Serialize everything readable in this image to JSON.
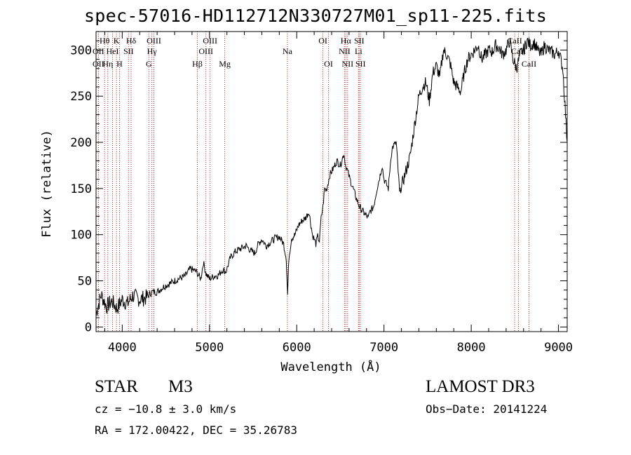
{
  "chart_data": {
    "type": "line",
    "title": "spec-57016-HD112712N330727M01_sp11-225.fits",
    "xlabel": "Wavelength (Å)",
    "ylabel": "Flux (relative)",
    "xlim": [
      3700,
      9100
    ],
    "ylim": [
      -5,
      320
    ],
    "xticks": [
      4000,
      5000,
      6000,
      7000,
      8000,
      9000
    ],
    "yticks": [
      0,
      50,
      100,
      150,
      200,
      250,
      300
    ],
    "series": [
      {
        "name": "flux",
        "x": [
          3700,
          3760,
          3820,
          3880,
          3940,
          4000,
          4060,
          4120,
          4200,
          4280,
          4340,
          4400,
          4480,
          4560,
          4640,
          4720,
          4780,
          4850,
          4900,
          4930,
          4960,
          5000,
          5050,
          5100,
          5150,
          5190,
          5240,
          5300,
          5360,
          5420,
          5480,
          5520,
          5560,
          5600,
          5650,
          5700,
          5750,
          5800,
          5850,
          5880,
          5895,
          5910,
          5940,
          5980,
          6020,
          6060,
          6100,
          6140,
          6180,
          6200,
          6220,
          6240,
          6260,
          6280,
          6300,
          6320,
          6340,
          6380,
          6420,
          6460,
          6500,
          6540,
          6560,
          6580,
          6610,
          6640,
          6680,
          6720,
          6760,
          6800,
          6820,
          6840,
          6880,
          6920,
          6950,
          6980,
          7000,
          7050,
          7080,
          7100,
          7140,
          7180,
          7240,
          7300,
          7360,
          7400,
          7440,
          7480,
          7520,
          7560,
          7600,
          7640,
          7680,
          7720,
          7760,
          7800,
          7840,
          7880,
          7920,
          7960,
          8000,
          8040,
          8080,
          8120,
          8160,
          8200,
          8240,
          8280,
          8320,
          8360,
          8400,
          8440,
          8480,
          8520,
          8560,
          8600,
          8640,
          8680,
          8720,
          8760,
          8800,
          8840,
          8880,
          8920,
          8960,
          9000,
          9050,
          9100
        ],
        "y": [
          15,
          35,
          22,
          28,
          20,
          30,
          25,
          34,
          30,
          32,
          38,
          38,
          44,
          48,
          52,
          55,
          63,
          60,
          52,
          70,
          58,
          52,
          55,
          56,
          62,
          60,
          75,
          82,
          85,
          88,
          82,
          80,
          90,
          95,
          88,
          92,
          96,
          98,
          90,
          75,
          35,
          75,
          96,
          100,
          110,
          115,
          118,
          125,
          100,
          95,
          90,
          98,
          93,
          118,
          130,
          150,
          148,
          165,
          172,
          180,
          175,
          188,
          175,
          170,
          160,
          152,
          140,
          130,
          125,
          120,
          118,
          125,
          130,
          150,
          162,
          175,
          160,
          150,
          185,
          195,
          200,
          145,
          165,
          185,
          225,
          250,
          260,
          265,
          245,
          275,
          283,
          270,
          300,
          295,
          285,
          265,
          260,
          255,
          275,
          290,
          295,
          300,
          305,
          290,
          295,
          300,
          298,
          305,
          302,
          295,
          300,
          310,
          290,
          280,
          295,
          300,
          310,
          305,
          308,
          300,
          295,
          305,
          300,
          298,
          295,
          300,
          280,
          200
        ]
      }
    ],
    "lines": [
      {
        "label": "Hθ",
        "x": 3798,
        "row": 1
      },
      {
        "label": "OII",
        "x": 3727,
        "row": 2
      },
      {
        "label": "OII",
        "x": 3727,
        "row": 3
      },
      {
        "label": "Hη",
        "x": 3835,
        "row": 3
      },
      {
        "label": "HeI",
        "x": 3889,
        "row": 2
      },
      {
        "label": "K",
        "x": 3934,
        "row": 1
      },
      {
        "label": "H",
        "x": 3969,
        "row": 3
      },
      {
        "label": "SII",
        "x": 4072,
        "row": 2
      },
      {
        "label": "Hδ",
        "x": 4102,
        "row": 1
      },
      {
        "label": "OIII",
        "x": 4363,
        "row": 1
      },
      {
        "label": "Hγ",
        "x": 4340,
        "row": 2
      },
      {
        "label": "G",
        "x": 4305,
        "row": 3
      },
      {
        "label": "Hβ",
        "x": 4861,
        "row": 3
      },
      {
        "label": "OIII",
        "x": 4959,
        "row": 2
      },
      {
        "label": "OIII",
        "x": 5007,
        "row": 1
      },
      {
        "label": "Mg",
        "x": 5175,
        "row": 3
      },
      {
        "label": "Na",
        "x": 5893,
        "row": 2
      },
      {
        "label": "OI",
        "x": 6300,
        "row": 1
      },
      {
        "label": "OI",
        "x": 6364,
        "row": 3
      },
      {
        "label": "Hα",
        "x": 6563,
        "row": 1
      },
      {
        "label": "NII",
        "x": 6548,
        "row": 2
      },
      {
        "label": "NII",
        "x": 6583,
        "row": 3
      },
      {
        "label": "SII",
        "x": 6716,
        "row": 1
      },
      {
        "label": "Li",
        "x": 6708,
        "row": 2
      },
      {
        "label": "SII",
        "x": 6731,
        "row": 3
      },
      {
        "label": "CaII",
        "x": 8498,
        "row": 1
      },
      {
        "label": "CaII",
        "x": 8542,
        "row": 2
      },
      {
        "label": "CaII",
        "x": 8662,
        "row": 3
      }
    ]
  },
  "info": {
    "class": "STAR",
    "subclass": "M3",
    "survey": "LAMOST DR3",
    "cz": "cz = −10.8 ± 3.0 km/s",
    "obs_date": "Obs−Date: 20141224",
    "radec": "RA = 172.00422, DEC =  35.26783"
  },
  "colors": {
    "line": "#000000",
    "marker": "#b22222"
  }
}
